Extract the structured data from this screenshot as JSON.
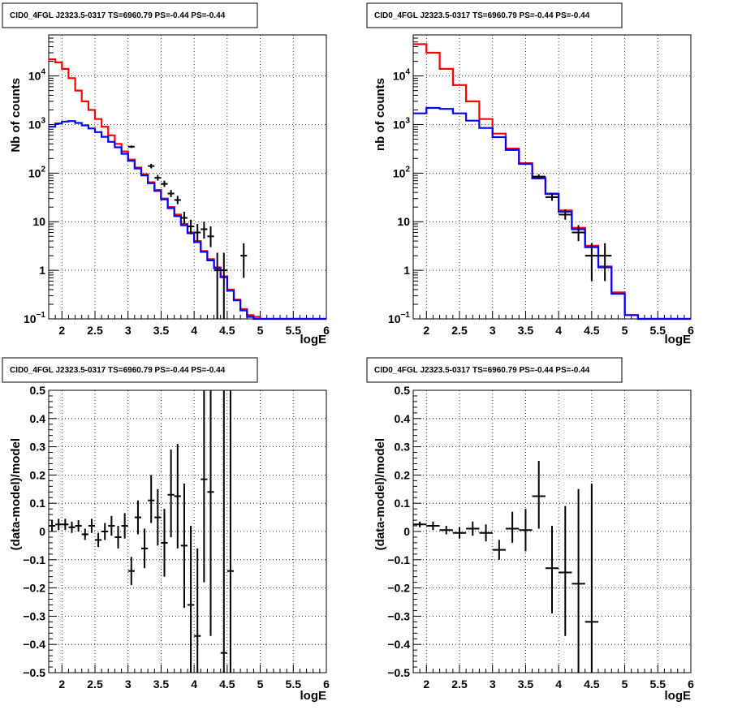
{
  "colors": {
    "data": "#000000",
    "model_total": "#ff0000",
    "model_source": "#0000ff",
    "grid": "#000000"
  },
  "chart_data": [
    {
      "id": "spec-fine",
      "type": "line",
      "title": "CID0_4FGL J2323.5-0317 TS=6960.79 PS=-0.44 PS=-0.44",
      "xlabel": "logE",
      "ylabel": "Nb of counts",
      "xlim": [
        1.8,
        6
      ],
      "ylim": [
        0.1,
        70000
      ],
      "yscale": "log",
      "grid": true,
      "xticks": [
        2,
        2.5,
        3,
        3.5,
        4,
        4.5,
        5,
        5.5,
        6
      ],
      "xtick_labels": [
        "2",
        "2.5",
        "3",
        "3.5",
        "4",
        "4.5",
        "5",
        "5.5",
        "6"
      ],
      "yticks": [
        0.1,
        1,
        10,
        100,
        1000,
        10000
      ],
      "ytick_labels": [
        "10^-1",
        "1",
        "10",
        "10^2",
        "10^3",
        "10^4"
      ],
      "bin_edges": [
        1.8,
        1.9,
        2.0,
        2.1,
        2.2,
        2.3,
        2.4,
        2.5,
        2.6,
        2.7,
        2.8,
        2.9,
        3.0,
        3.1,
        3.2,
        3.3,
        3.4,
        3.5,
        3.6,
        3.7,
        3.8,
        3.9,
        4.0,
        4.1,
        4.2,
        4.3,
        4.4,
        4.5,
        4.6,
        4.7,
        4.8,
        4.9,
        5.0,
        5.1,
        5.2,
        5.3,
        5.4,
        5.5,
        5.6,
        5.7,
        5.8,
        5.9,
        6.0
      ],
      "series": [
        {
          "role": "model_total",
          "color": "#ff0000",
          "values": [
            22000,
            19000,
            14000,
            9000,
            5000,
            3000,
            2000,
            1300,
            900,
            600,
            400,
            280,
            190,
            130,
            95,
            65,
            45,
            30,
            20,
            14,
            9,
            6,
            4,
            2.5,
            1.7,
            1.15,
            0.75,
            0.4,
            0.25,
            0.16,
            0.12,
            0.11,
            0.1,
            0.1,
            0.1,
            0.1,
            0.1,
            0.1,
            0.1,
            0.1,
            0.1,
            0.1
          ]
        },
        {
          "role": "model_source",
          "color": "#0000ff",
          "values": [
            900,
            1050,
            1150,
            1180,
            1080,
            960,
            830,
            700,
            560,
            440,
            340,
            250,
            180,
            125,
            90,
            62,
            43,
            29,
            19,
            13,
            8.5,
            5.8,
            3.8,
            2.4,
            1.6,
            1.1,
            0.72,
            0.38,
            0.24,
            0.15,
            0.11,
            0.1,
            0.1,
            0.1,
            0.1,
            0.1,
            0.1,
            0.1,
            0.1,
            0.1,
            0.1,
            0.1
          ]
        },
        {
          "role": "data",
          "color": "#000000",
          "kind": "points",
          "points": [
            {
              "x": 3.05,
              "y": 350,
              "lo": 330,
              "hi": 370,
              "xerr": 0.05
            },
            {
              "x": 3.35,
              "y": 140,
              "lo": 125,
              "hi": 155,
              "xerr": 0.05
            },
            {
              "x": 3.45,
              "y": 80,
              "lo": 70,
              "hi": 92,
              "xerr": 0.05
            },
            {
              "x": 3.55,
              "y": 60,
              "lo": 52,
              "hi": 70,
              "xerr": 0.05
            },
            {
              "x": 3.65,
              "y": 38,
              "lo": 32,
              "hi": 45,
              "xerr": 0.05
            },
            {
              "x": 3.75,
              "y": 28,
              "lo": 23,
              "hi": 34,
              "xerr": 0.05
            },
            {
              "x": 3.85,
              "y": 12,
              "lo": 9,
              "hi": 16,
              "xerr": 0.05
            },
            {
              "x": 3.95,
              "y": 8,
              "lo": 5.5,
              "hi": 11,
              "xerr": 0.05
            },
            {
              "x": 4.05,
              "y": 6,
              "lo": 4,
              "hi": 9,
              "xerr": 0.05
            },
            {
              "x": 4.15,
              "y": 7,
              "lo": 4.5,
              "hi": 10,
              "xerr": 0.05
            },
            {
              "x": 4.25,
              "y": 5,
              "lo": 3,
              "hi": 8,
              "xerr": 0.05
            },
            {
              "x": 4.35,
              "y": 1,
              "lo": 0.1,
              "hi": 2.3,
              "xerr": 0.05
            },
            {
              "x": 4.45,
              "y": 1,
              "lo": 0.1,
              "hi": 2.3,
              "xerr": 0.05
            },
            {
              "x": 4.75,
              "y": 2,
              "lo": 0.7,
              "hi": 3.6,
              "xerr": 0.05
            }
          ]
        }
      ]
    },
    {
      "id": "spec-coarse",
      "type": "line",
      "title": "CID0_4FGL J2323.5-0317 TS=6960.79 PS=-0.44 PS=-0.44",
      "xlabel": "logE",
      "ylabel": "nb of counts",
      "xlim": [
        1.8,
        6
      ],
      "ylim": [
        0.1,
        70000
      ],
      "yscale": "log",
      "grid": true,
      "xticks": [
        2,
        2.5,
        3,
        3.5,
        4,
        4.5,
        5,
        5.5,
        6
      ],
      "xtick_labels": [
        "2",
        "2.5",
        "3",
        "3.5",
        "4",
        "4.5",
        "5",
        "5.5",
        "6"
      ],
      "yticks": [
        0.1,
        1,
        10,
        100,
        1000,
        10000
      ],
      "ytick_labels": [
        "10^-1",
        "1",
        "10",
        "10^2",
        "10^3",
        "10^4"
      ],
      "bin_edges": [
        1.8,
        2.0,
        2.2,
        2.4,
        2.6,
        2.8,
        3.0,
        3.2,
        3.4,
        3.6,
        3.8,
        4.0,
        4.2,
        4.4,
        4.6,
        4.8,
        5.0,
        5.2,
        5.4,
        5.6,
        5.8,
        6.0
      ],
      "series": [
        {
          "role": "model_total",
          "color": "#ff0000",
          "values": [
            45000,
            30000,
            14000,
            6500,
            3000,
            1300,
            650,
            320,
            160,
            80,
            38,
            17,
            7.5,
            3.2,
            1.2,
            0.35,
            0.12,
            0.1,
            0.1,
            0.1,
            0.1
          ]
        },
        {
          "role": "model_source",
          "color": "#0000ff",
          "values": [
            1700,
            2200,
            2100,
            1700,
            1200,
            850,
            550,
            300,
            155,
            78,
            37,
            16,
            7,
            3,
            1.15,
            0.33,
            0.12,
            0.1,
            0.1,
            0.1,
            0.1
          ]
        },
        {
          "role": "data",
          "color": "#000000",
          "kind": "points",
          "points": [
            {
              "x": 3.7,
              "y": 85,
              "lo": 76,
              "hi": 95,
              "xerr": 0.1
            },
            {
              "x": 3.9,
              "y": 32,
              "lo": 27,
              "hi": 38,
              "xerr": 0.1
            },
            {
              "x": 4.1,
              "y": 14,
              "lo": 11,
              "hi": 18,
              "xerr": 0.1
            },
            {
              "x": 4.3,
              "y": 6,
              "lo": 4,
              "hi": 8.5,
              "xerr": 0.1
            },
            {
              "x": 4.5,
              "y": 2,
              "lo": 0.6,
              "hi": 3.6,
              "xerr": 0.1
            },
            {
              "x": 4.7,
              "y": 2,
              "lo": 0.6,
              "hi": 3.6,
              "xerr": 0.1
            }
          ]
        }
      ]
    },
    {
      "id": "resid-fine",
      "type": "scatter",
      "title": "CID0_4FGL J2323.5-0317 TS=6960.79 PS=-0.44 PS=-0.44",
      "xlabel": "logE",
      "ylabel": "(data-model)/model",
      "xlim": [
        1.8,
        6
      ],
      "ylim": [
        -0.5,
        0.5
      ],
      "yscale": "linear",
      "grid": true,
      "xticks": [
        2,
        2.5,
        3,
        3.5,
        4,
        4.5,
        5,
        5.5,
        6
      ],
      "xtick_labels": [
        "2",
        "2.5",
        "3",
        "3.5",
        "4",
        "4.5",
        "5",
        "5.5",
        "6"
      ],
      "yticks": [
        -0.5,
        -0.4,
        -0.3,
        -0.2,
        -0.1,
        0,
        0.1,
        0.2,
        0.3,
        0.4,
        0.5
      ],
      "ytick_labels": [
        "−0.5",
        "−0.4",
        "−0.3",
        "−0.2",
        "−0.1",
        "0",
        "0.1",
        "0.2",
        "0.3",
        "0.4",
        "0.5"
      ],
      "series": [
        {
          "role": "data",
          "color": "#000000",
          "kind": "points",
          "points": [
            {
              "x": 1.85,
              "y": 0.02,
              "lo": 0.0,
              "hi": 0.04,
              "xerr": 0.05
            },
            {
              "x": 1.95,
              "y": 0.025,
              "lo": 0.005,
              "hi": 0.045,
              "xerr": 0.05
            },
            {
              "x": 2.05,
              "y": 0.025,
              "lo": 0.005,
              "hi": 0.045,
              "xerr": 0.05
            },
            {
              "x": 2.15,
              "y": 0.015,
              "lo": -0.005,
              "hi": 0.035,
              "xerr": 0.05
            },
            {
              "x": 2.25,
              "y": 0.02,
              "lo": 0.0,
              "hi": 0.04,
              "xerr": 0.05
            },
            {
              "x": 2.35,
              "y": -0.01,
              "lo": -0.03,
              "hi": 0.01,
              "xerr": 0.05
            },
            {
              "x": 2.45,
              "y": 0.02,
              "lo": -0.005,
              "hi": 0.045,
              "xerr": 0.05
            },
            {
              "x": 2.55,
              "y": -0.03,
              "lo": -0.055,
              "hi": -0.005,
              "xerr": 0.05
            },
            {
              "x": 2.65,
              "y": 0.0,
              "lo": -0.03,
              "hi": 0.03,
              "xerr": 0.05
            },
            {
              "x": 2.75,
              "y": 0.02,
              "lo": -0.015,
              "hi": 0.055,
              "xerr": 0.05
            },
            {
              "x": 2.85,
              "y": -0.02,
              "lo": -0.06,
              "hi": 0.02,
              "xerr": 0.05
            },
            {
              "x": 2.95,
              "y": 0.02,
              "lo": -0.025,
              "hi": 0.065,
              "xerr": 0.05
            },
            {
              "x": 3.05,
              "y": -0.14,
              "lo": -0.19,
              "hi": -0.09,
              "xerr": 0.05
            },
            {
              "x": 3.15,
              "y": 0.05,
              "lo": -0.01,
              "hi": 0.11,
              "xerr": 0.05
            },
            {
              "x": 3.25,
              "y": -0.06,
              "lo": -0.13,
              "hi": 0.01,
              "xerr": 0.05
            },
            {
              "x": 3.35,
              "y": 0.11,
              "lo": 0.03,
              "hi": 0.2,
              "xerr": 0.05
            },
            {
              "x": 3.45,
              "y": 0.05,
              "lo": -0.05,
              "hi": 0.15,
              "xerr": 0.05
            },
            {
              "x": 3.55,
              "y": -0.04,
              "lo": -0.16,
              "hi": 0.08,
              "xerr": 0.05
            },
            {
              "x": 3.65,
              "y": 0.13,
              "lo": -0.02,
              "hi": 0.29,
              "xerr": 0.05
            },
            {
              "x": 3.75,
              "y": 0.125,
              "lo": -0.06,
              "hi": 0.31,
              "xerr": 0.05
            },
            {
              "x": 3.85,
              "y": -0.05,
              "lo": -0.27,
              "hi": 0.17,
              "xerr": 0.05
            },
            {
              "x": 3.95,
              "y": -0.26,
              "lo": -0.5,
              "hi": 0.02,
              "xerr": 0.05
            },
            {
              "x": 4.05,
              "y": -0.37,
              "lo": -0.5,
              "hi": -0.06,
              "xerr": 0.05
            },
            {
              "x": 4.15,
              "y": 0.185,
              "lo": -0.18,
              "hi": 0.55,
              "xerr": 0.05
            },
            {
              "x": 4.25,
              "y": 0.14,
              "lo": -0.37,
              "hi": 0.55,
              "xerr": 0.05
            },
            {
              "x": 4.45,
              "y": -0.43,
              "lo": -0.5,
              "hi": 0.55,
              "xerr": 0.05
            },
            {
              "x": 4.55,
              "y": -0.14,
              "lo": -0.5,
              "hi": 0.55,
              "xerr": 0.05
            }
          ]
        }
      ]
    },
    {
      "id": "resid-coarse",
      "type": "scatter",
      "title": "CID0_4FGL J2323.5-0317 TS=6960.79 PS=-0.44 PS=-0.44",
      "xlabel": "logE",
      "ylabel": "(data-model)/model",
      "xlim": [
        1.8,
        6
      ],
      "ylim": [
        -0.5,
        0.5
      ],
      "yscale": "linear",
      "grid": true,
      "xticks": [
        2,
        2.5,
        3,
        3.5,
        4,
        4.5,
        5,
        5.5,
        6
      ],
      "xtick_labels": [
        "2",
        "2.5",
        "3",
        "3.5",
        "4",
        "4.5",
        "5",
        "5.5",
        "6"
      ],
      "yticks": [
        -0.5,
        -0.4,
        -0.3,
        -0.2,
        -0.1,
        0,
        0.1,
        0.2,
        0.3,
        0.4,
        0.5
      ],
      "ytick_labels": [
        "−0.5",
        "−0.4",
        "−0.3",
        "−0.2",
        "−0.1",
        "0",
        "0.1",
        "0.2",
        "0.3",
        "0.4",
        "0.5"
      ],
      "series": [
        {
          "role": "data",
          "color": "#000000",
          "kind": "points",
          "points": [
            {
              "x": 1.9,
              "y": 0.025,
              "lo": 0.015,
              "hi": 0.035,
              "xerr": 0.1
            },
            {
              "x": 2.1,
              "y": 0.02,
              "lo": 0.005,
              "hi": 0.035,
              "xerr": 0.1
            },
            {
              "x": 2.3,
              "y": 0.005,
              "lo": -0.01,
              "hi": 0.02,
              "xerr": 0.1
            },
            {
              "x": 2.5,
              "y": -0.005,
              "lo": -0.025,
              "hi": 0.015,
              "xerr": 0.1
            },
            {
              "x": 2.7,
              "y": 0.01,
              "lo": -0.015,
              "hi": 0.035,
              "xerr": 0.1
            },
            {
              "x": 2.9,
              "y": -0.005,
              "lo": -0.035,
              "hi": 0.025,
              "xerr": 0.1
            },
            {
              "x": 3.1,
              "y": -0.065,
              "lo": -0.1,
              "hi": -0.03,
              "xerr": 0.1
            },
            {
              "x": 3.3,
              "y": 0.01,
              "lo": -0.04,
              "hi": 0.07,
              "xerr": 0.1
            },
            {
              "x": 3.5,
              "y": 0.005,
              "lo": -0.07,
              "hi": 0.08,
              "xerr": 0.1
            },
            {
              "x": 3.7,
              "y": 0.125,
              "lo": 0.01,
              "hi": 0.25,
              "xerr": 0.1
            },
            {
              "x": 3.9,
              "y": -0.13,
              "lo": -0.29,
              "hi": 0.02,
              "xerr": 0.1
            },
            {
              "x": 4.1,
              "y": -0.145,
              "lo": -0.37,
              "hi": 0.09,
              "xerr": 0.1
            },
            {
              "x": 4.3,
              "y": -0.185,
              "lo": -0.5,
              "hi": 0.15,
              "xerr": 0.1
            },
            {
              "x": 4.5,
              "y": -0.32,
              "lo": -0.5,
              "hi": 0.17,
              "xerr": 0.1
            }
          ]
        }
      ]
    }
  ]
}
